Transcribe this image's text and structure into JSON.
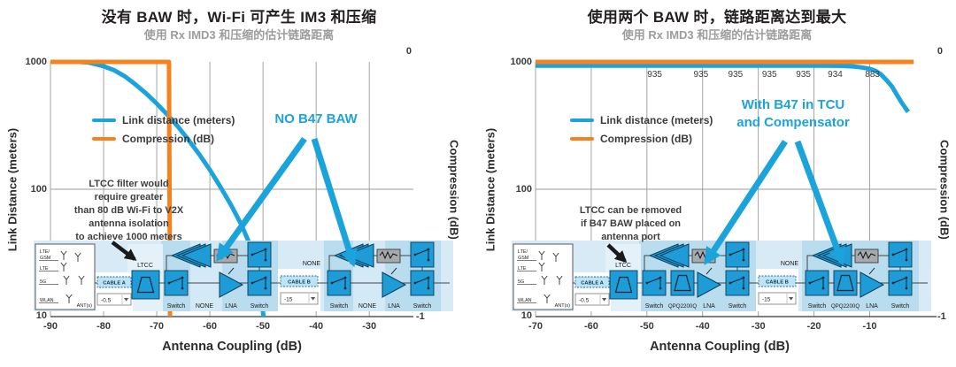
{
  "colors": {
    "cyan": "#1BA3DC",
    "orange": "#F5821F"
  },
  "panels": [
    {
      "title": "没有 BAW 时，Wi-Fi 可产生 IM3 和压缩",
      "subtitle": "使用 Rx IMD3 和压缩的估计链路距离",
      "y_left_title": "Link Distance (meters)",
      "y_right_title": "Compression (dB)",
      "x_title": "Antenna Coupling (dB)",
      "y_left_ticks": [
        "1000",
        "100",
        "10"
      ],
      "y_right_ticks": [
        "0",
        "-1"
      ],
      "legend": [
        {
          "label": "Link distance (meters)",
          "color": "#1BA3DC"
        },
        {
          "label": "Compression (dB)",
          "color": "#F5821F"
        }
      ],
      "note": "LTCC filter would\nrequire greater\nthan 80 dB Wi-Fi to V2X\nantenna isolation\nto achieve 1000 meters",
      "callout": "NO B47 BAW",
      "diagram": {
        "ant_rows": [
          "LTE/",
          "GSM",
          "LTE",
          "5G",
          "WLAN"
        ],
        "ant_label": "ANT(s)",
        "cable_a_label": "CABLE A",
        "cable_a_value": "-0.5",
        "ltcc_label": "LTCC",
        "cable_b_label": "CABLE B",
        "cable_b_value": "-15",
        "top_slot_label": "NONE",
        "switch_label": "Switch",
        "lna_label": "LNA",
        "slot_label": "NONE",
        "slot_filled": false
      }
    },
    {
      "title": "使用两个 BAW 时，链路距离达到最大",
      "subtitle": "使用 Rx IMD3 和压缩的估计链路距离",
      "y_left_title": "Link Distance (meters)",
      "y_right_title": "Compression (dB)",
      "x_title": "Antenna Coupling (dB)",
      "y_left_ticks": [
        "1000",
        "100",
        "10"
      ],
      "y_right_ticks": [
        "0",
        "-1"
      ],
      "legend": [
        {
          "label": "Link distance (meters)",
          "color": "#1BA3DC"
        },
        {
          "label": "Compression (dB)",
          "color": "#F5821F"
        }
      ],
      "note": "LTCC can be removed\nif B47 BAW placed on\nantenna port",
      "callout": "With B47 in TCU\nand Compensator",
      "diagram": {
        "ant_rows": [
          "LTE/",
          "GSM",
          "LTE",
          "5G",
          "WLAN"
        ],
        "ant_label": "ANT(s)",
        "cable_a_label": "CABLE A",
        "cable_a_value": "-0.5",
        "ltcc_label": "LTCC",
        "cable_b_label": "CABLE B",
        "cable_b_value": "-15",
        "top_slot_label": "NONE",
        "switch_label": "Switch",
        "lna_label": "LNA",
        "slot_label": "QPQ2200Q",
        "slot_filled": true
      }
    }
  ],
  "chart_data": [
    {
      "type": "line",
      "title": "没有 BAW 时，Wi-Fi 可产生 IM3 和压缩",
      "subtitle": "使用 Rx IMD3 和压缩的估计链路距离",
      "xlabel": "Antenna Coupling (dB)",
      "ylabel": "Link Distance (meters)",
      "ylabel_right": "Compression (dB)",
      "x_ticks": [
        -90,
        -80,
        -70,
        -60,
        -50,
        -40,
        -30
      ],
      "x_range": [
        -90,
        -21.7
      ],
      "y_left_axis": {
        "scale": "log",
        "range": [
          10,
          1000
        ],
        "ticks": [
          10,
          100,
          1000
        ]
      },
      "y_right_axis": {
        "range": [
          -1,
          0
        ],
        "ticks": [
          0,
          -1
        ]
      },
      "grid": true,
      "legend_position": "upper-left-inside",
      "series": [
        {
          "name": "Link distance (meters)",
          "axis": "left",
          "color": "#1BA3DC",
          "points": [
            [
              -90,
              1000
            ],
            [
              -84.5,
              1000
            ],
            [
              -83,
              990
            ],
            [
              -81.5,
              960
            ],
            [
              -80,
              925
            ],
            [
              -78,
              860
            ],
            [
              -76,
              770
            ],
            [
              -74,
              665
            ],
            [
              -72,
              565
            ],
            [
              -70,
              470
            ],
            [
              -68,
              385
            ],
            [
              -66,
              310
            ],
            [
              -64,
              243
            ],
            [
              -62,
              188
            ],
            [
              -60,
              142
            ],
            [
              -58,
              104
            ],
            [
              -56,
              75
            ],
            [
              -54,
              52
            ],
            [
              -52,
              33
            ],
            [
              -50.7,
              19
            ],
            [
              -49.9,
              10
            ]
          ]
        },
        {
          "name": "Compression (dB)",
          "axis": "right",
          "color": "#F5821F",
          "points": [
            [
              -90,
              0
            ],
            [
              -67.7,
              0
            ],
            [
              -67.5,
              -1
            ]
          ]
        }
      ],
      "point_labels": []
    },
    {
      "type": "line",
      "title": "使用两个 BAW 时，链路距离达到最大",
      "subtitle": "使用 Rx IMD3 和压缩的估计链路距离",
      "xlabel": "Antenna Coupling (dB)",
      "ylabel": "Link Distance (meters)",
      "ylabel_right": "Compression (dB)",
      "x_ticks": [
        -70,
        -60,
        -50,
        -40,
        -30,
        -20,
        -10
      ],
      "x_range": [
        -70,
        2
      ],
      "y_left_axis": {
        "scale": "log",
        "range": [
          10,
          1000
        ],
        "ticks": [
          10,
          100,
          1000
        ]
      },
      "y_right_axis": {
        "range": [
          -1,
          0
        ],
        "ticks": [
          0,
          -1
        ]
      },
      "grid": true,
      "legend_position": "upper-left-inside",
      "series": [
        {
          "name": "Link distance (meters)",
          "axis": "left",
          "color": "#1BA3DC",
          "points": [
            [
              -70,
              935
            ],
            [
              -30,
              935
            ],
            [
              -22,
              935
            ],
            [
              -18,
              934
            ],
            [
              -15,
              930
            ],
            [
              -13,
              921
            ],
            [
              -11.5,
              905
            ],
            [
              -10,
              883
            ],
            [
              -9,
              852
            ],
            [
              -8,
              800
            ],
            [
              -7,
              720
            ],
            [
              -6,
              640
            ],
            [
              -5.2,
              560
            ],
            [
              -4.4,
              490
            ],
            [
              -3.6,
              435
            ],
            [
              -3.1,
              405
            ]
          ]
        },
        {
          "name": "Compression (dB)",
          "axis": "right",
          "color": "#F5821F",
          "points": [
            [
              -70,
              0
            ],
            [
              -2.1,
              0
            ]
          ]
        }
      ],
      "point_labels": [
        {
          "x": -48.6,
          "label": "935"
        },
        {
          "x": -40.3,
          "label": "935"
        },
        {
          "x": -34.1,
          "label": "935"
        },
        {
          "x": -28.0,
          "label": "935"
        },
        {
          "x": -21.9,
          "label": "935"
        },
        {
          "x": -16.2,
          "label": "934"
        },
        {
          "x": -9.5,
          "label": "883"
        }
      ]
    }
  ]
}
